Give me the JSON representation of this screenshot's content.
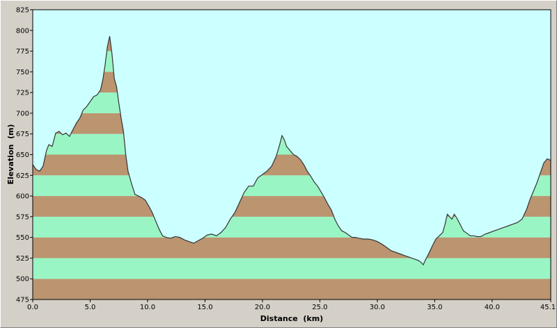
{
  "colors": {
    "sky": "#ccffff",
    "band_brown": "#bb9470",
    "band_green": "#9af5c4",
    "profile_line": "#333333",
    "frame_bg": "#d4d0c8"
  },
  "chart_data": {
    "type": "area",
    "xlabel": "Distance  (km)",
    "ylabel": "Elevation  (m)",
    "xlim": [
      0,
      45.1
    ],
    "ylim": [
      475,
      825
    ],
    "x_ticks": [
      "0.0",
      "5.0",
      "10.0",
      "15.0",
      "20.0",
      "25.0",
      "30.0",
      "35.0",
      "40.0",
      "45.1"
    ],
    "x_tick_values": [
      0,
      5,
      10,
      15,
      20,
      25,
      30,
      35,
      40,
      45.1
    ],
    "y_ticks": [
      "475",
      "500",
      "525",
      "550",
      "575",
      "600",
      "625",
      "650",
      "675",
      "700",
      "725",
      "750",
      "775",
      "800",
      "825"
    ],
    "band_step": 25,
    "series": [
      {
        "x": [
          0,
          0.3,
          0.6,
          0.9,
          1.2,
          1.4,
          1.7,
          2.0,
          2.3,
          2.6,
          2.9,
          3.2,
          3.5,
          3.8,
          4.1,
          4.4,
          4.7,
          5.0,
          5.3,
          5.6,
          5.9,
          6.1,
          6.3,
          6.5,
          6.7,
          6.9,
          7.1,
          7.3,
          7.5,
          7.7,
          7.9,
          8.1,
          8.3,
          8.6,
          8.9,
          9.2,
          9.5,
          9.8,
          10.1,
          10.4,
          10.7,
          11.0,
          11.3,
          11.6,
          12.0,
          12.4,
          12.8,
          13.2,
          13.6,
          14.0,
          14.4,
          14.8,
          15.2,
          15.6,
          16.0,
          16.4,
          16.8,
          17.2,
          17.6,
          18.0,
          18.4,
          18.8,
          19.2,
          19.6,
          20.0,
          20.4,
          20.8,
          21.2,
          21.5,
          21.7,
          21.9,
          22.1,
          22.4,
          22.7,
          23.0,
          23.3,
          23.6,
          23.9,
          24.2,
          24.5,
          24.8,
          25.1,
          25.4,
          25.7,
          26.0,
          26.3,
          26.6,
          26.9,
          27.2,
          27.5,
          27.8,
          28.1,
          28.4,
          28.8,
          29.2,
          29.6,
          30.0,
          30.4,
          30.8,
          31.2,
          31.6,
          32.0,
          32.4,
          32.8,
          33.2,
          33.6,
          33.8,
          34.0,
          34.2,
          34.5,
          34.8,
          35.1,
          35.4,
          35.7,
          35.9,
          36.1,
          36.3,
          36.5,
          36.7,
          36.9,
          37.2,
          37.5,
          37.8,
          38.1,
          38.4,
          38.7,
          39.0,
          39.4,
          39.8,
          40.2,
          40.6,
          41.0,
          41.4,
          41.8,
          42.2,
          42.6,
          43.0,
          43.3,
          43.6,
          43.9,
          44.2,
          44.5,
          44.8,
          45.1
        ],
        "y": [
          638,
          632,
          630,
          636,
          655,
          662,
          660,
          676,
          678,
          674,
          676,
          672,
          680,
          688,
          694,
          704,
          708,
          714,
          720,
          722,
          728,
          740,
          758,
          780,
          793,
          772,
          742,
          732,
          712,
          694,
          678,
          650,
          630,
          615,
          602,
          600,
          598,
          595,
          588,
          580,
          570,
          560,
          552,
          550,
          549,
          551,
          550,
          547,
          545,
          543,
          546,
          549,
          553,
          554,
          552,
          556,
          562,
          572,
          580,
          592,
          604,
          612,
          612,
          622,
          626,
          630,
          636,
          648,
          662,
          673,
          668,
          660,
          655,
          650,
          648,
          644,
          638,
          630,
          624,
          617,
          612,
          605,
          598,
          590,
          583,
          572,
          564,
          558,
          556,
          553,
          550,
          550,
          549,
          548,
          548,
          547,
          545,
          542,
          538,
          534,
          532,
          530,
          528,
          526,
          524,
          522,
          520,
          517,
          523,
          531,
          540,
          548,
          552,
          556,
          566,
          578,
          575,
          572,
          578,
          574,
          566,
          558,
          555,
          552,
          552,
          551,
          551,
          554,
          556,
          558,
          560,
          562,
          564,
          566,
          568,
          572,
          584,
          596,
          606,
          616,
          628,
          640,
          645,
          643
        ]
      }
    ]
  }
}
